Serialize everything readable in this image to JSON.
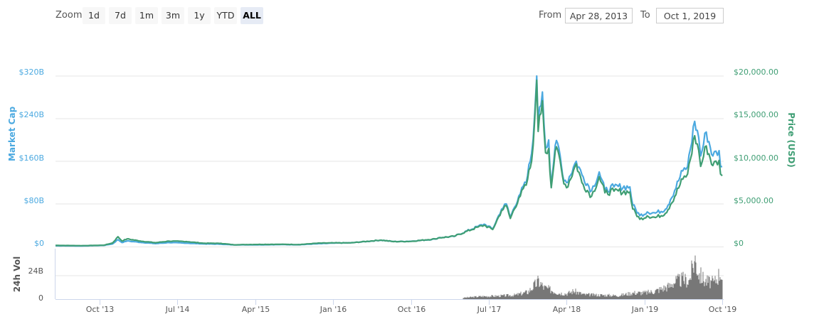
{
  "toolbar": {
    "zoom_label": "Zoom",
    "zoom_buttons": [
      {
        "label": "1d",
        "active": false
      },
      {
        "label": "7d",
        "active": false
      },
      {
        "label": "1m",
        "active": false
      },
      {
        "label": "3m",
        "active": false
      },
      {
        "label": "1y",
        "active": false
      },
      {
        "label": "YTD",
        "active": false
      },
      {
        "label": "ALL",
        "active": true
      }
    ],
    "from_label": "From",
    "from_value": "Apr 28, 2013",
    "to_label": "To",
    "to_value": "Oct 1, 2019"
  },
  "colors": {
    "market_cap": "#4ba9e0",
    "price": "#3f9e74",
    "volume": "#777777",
    "grid": "#e6e6e6",
    "axis_line": "#ccd6eb"
  },
  "chart_data": {
    "type": "line",
    "title": "",
    "x_range": [
      "Apr 28, 2013",
      "Oct 1, 2019"
    ],
    "x_ticks": [
      "Oct '13",
      "Jul '14",
      "Apr '15",
      "Jan '16",
      "Oct '16",
      "Jul '17",
      "Apr '18",
      "Jan '19",
      "Oct '19"
    ],
    "left_axis": {
      "label": "Market Cap",
      "ticks": [
        "$0",
        "$80B",
        "$160B",
        "$240B",
        "$320B"
      ],
      "range": [
        0,
        320
      ]
    },
    "right_axis": {
      "label": "Price (USD)",
      "ticks": [
        "$0",
        "$5,000.00",
        "$10,000.00",
        "$15,000.00",
        "$20,000.00"
      ],
      "range": [
        0,
        20000
      ]
    },
    "volume_axis": {
      "label": "24h Vol",
      "ticks": [
        "0",
        "24B"
      ],
      "range": [
        0,
        48
      ]
    },
    "legend": [],
    "grid": true,
    "series": [
      {
        "name": "Market Cap",
        "axis": "left",
        "unit": "USD billions",
        "x": [
          "2013-04-28",
          "2013-08-01",
          "2013-10-15",
          "2013-11-15",
          "2013-12-04",
          "2013-12-18",
          "2014-01-05",
          "2014-02-20",
          "2014-04-15",
          "2014-06-01",
          "2014-08-01",
          "2014-10-01",
          "2014-12-01",
          "2015-01-15",
          "2015-04-01",
          "2015-07-01",
          "2015-09-01",
          "2015-11-05",
          "2016-01-01",
          "2016-03-01",
          "2016-06-17",
          "2016-08-01",
          "2016-10-01",
          "2016-12-25",
          "2017-01-05",
          "2017-03-01",
          "2017-05-25",
          "2017-06-15",
          "2017-07-15",
          "2017-08-15",
          "2017-09-01",
          "2017-09-15",
          "2017-10-15",
          "2017-11-10",
          "2017-11-29",
          "2017-12-10",
          "2017-12-17",
          "2017-12-22",
          "2018-01-06",
          "2018-01-17",
          "2018-01-28",
          "2018-02-06",
          "2018-02-20",
          "2018-03-05",
          "2018-03-18",
          "2018-04-01",
          "2018-05-05",
          "2018-05-25",
          "2018-06-28",
          "2018-07-25",
          "2018-08-14",
          "2018-09-15",
          "2018-11-10",
          "2018-11-20",
          "2018-12-15",
          "2019-01-10",
          "2019-02-08",
          "2019-03-15",
          "2019-04-02",
          "2019-05-15",
          "2019-06-01",
          "2019-06-26",
          "2019-07-10",
          "2019-07-17",
          "2019-08-06",
          "2019-08-29",
          "2019-09-20",
          "2019-09-25",
          "2019-10-01"
        ],
        "values": [
          1.5,
          1.2,
          2.2,
          5.0,
          13.0,
          7.5,
          10.5,
          8.0,
          5.5,
          7.5,
          6.5,
          5.0,
          4.5,
          3.2,
          3.3,
          3.7,
          3.4,
          5.2,
          6.5,
          6.9,
          12.0,
          9.3,
          10.0,
          14.0,
          16.5,
          19.0,
          38.0,
          42.0,
          33.0,
          70.0,
          80.0,
          55.0,
          95.0,
          120.0,
          175.0,
          250.0,
          320.0,
          230.0,
          290.0,
          185.0,
          200.0,
          115.0,
          190.0,
          185.0,
          135.0,
          120.0,
          160.0,
          135.0,
          105.0,
          140.0,
          105.0,
          112.0,
          112.0,
          78.0,
          58.0,
          65.0,
          63.0,
          70.0,
          88.0,
          142.0,
          150.0,
          235.0,
          205.0,
          170.0,
          215.0,
          170.0,
          180.0,
          150.0,
          150.0
        ]
      },
      {
        "name": "Price (USD)",
        "axis": "right",
        "unit": "USD",
        "x": [
          "2013-04-28",
          "2013-08-01",
          "2013-10-15",
          "2013-11-15",
          "2013-12-04",
          "2013-12-18",
          "2014-01-05",
          "2014-02-20",
          "2014-04-15",
          "2014-06-01",
          "2014-08-01",
          "2014-10-01",
          "2014-12-01",
          "2015-01-15",
          "2015-04-01",
          "2015-07-01",
          "2015-09-01",
          "2015-11-05",
          "2016-01-01",
          "2016-03-01",
          "2016-06-17",
          "2016-08-01",
          "2016-10-01",
          "2016-12-25",
          "2017-01-05",
          "2017-03-01",
          "2017-05-25",
          "2017-06-15",
          "2017-07-15",
          "2017-08-15",
          "2017-09-01",
          "2017-09-15",
          "2017-10-15",
          "2017-11-10",
          "2017-11-29",
          "2017-12-10",
          "2017-12-17",
          "2017-12-22",
          "2018-01-06",
          "2018-01-17",
          "2018-01-28",
          "2018-02-06",
          "2018-02-20",
          "2018-03-05",
          "2018-03-18",
          "2018-04-01",
          "2018-05-05",
          "2018-05-25",
          "2018-06-28",
          "2018-07-25",
          "2018-08-14",
          "2018-09-15",
          "2018-11-10",
          "2018-11-20",
          "2018-12-15",
          "2019-01-10",
          "2019-02-08",
          "2019-03-15",
          "2019-04-02",
          "2019-05-15",
          "2019-06-01",
          "2019-06-26",
          "2019-07-10",
          "2019-07-17",
          "2019-08-06",
          "2019-08-29",
          "2019-09-20",
          "2019-09-25",
          "2019-10-01"
        ],
        "values": [
          135,
          105,
          155,
          420,
          1150,
          650,
          900,
          650,
          450,
          640,
          590,
          390,
          375,
          210,
          245,
          265,
          230,
          390,
          430,
          430,
          760,
          580,
          610,
          900,
          1020,
          1200,
          2300,
          2500,
          2000,
          4200,
          4800,
          3300,
          5700,
          7200,
          10000,
          15000,
          19500,
          13500,
          17100,
          11000,
          11500,
          6900,
          11200,
          10800,
          8200,
          6900,
          9700,
          7500,
          5900,
          8200,
          6300,
          6500,
          6400,
          4400,
          3200,
          3600,
          3400,
          3900,
          4900,
          7900,
          8500,
          13000,
          11300,
          9400,
          11800,
          9500,
          10100,
          8500,
          8300
        ]
      },
      {
        "name": "24h Vol",
        "axis": "volume",
        "type": "bar",
        "unit": "USD billions",
        "x": [
          "2013-04-28",
          "2017-04-01",
          "2017-06-01",
          "2017-08-01",
          "2017-10-01",
          "2017-11-15",
          "2017-12-10",
          "2017-12-22",
          "2018-01-10",
          "2018-02-06",
          "2018-03-01",
          "2018-04-01",
          "2018-04-25",
          "2018-06-01",
          "2018-08-01",
          "2018-10-01",
          "2018-11-20",
          "2019-01-01",
          "2019-02-01",
          "2019-04-01",
          "2019-04-05",
          "2019-05-15",
          "2019-06-05",
          "2019-06-26",
          "2019-07-10",
          "2019-08-01",
          "2019-09-01",
          "2019-09-25",
          "2019-10-01"
        ],
        "values": [
          0,
          1.5,
          3,
          3.5,
          4.5,
          8,
          16,
          20,
          13,
          10,
          7,
          6,
          9,
          5,
          4.5,
          4,
          7,
          7,
          8.5,
          15,
          18,
          22,
          20,
          45,
          28,
          20,
          18,
          31,
          20
        ]
      }
    ]
  }
}
